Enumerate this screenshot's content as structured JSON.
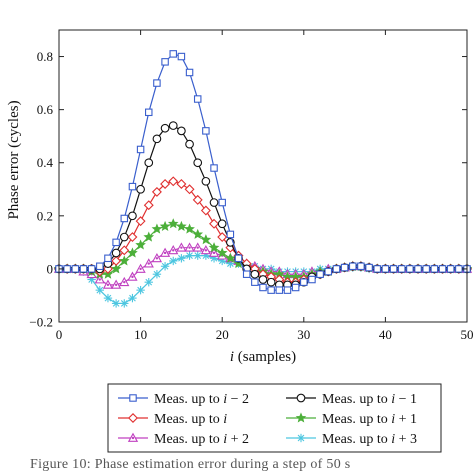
{
  "chart_data": {
    "type": "line",
    "xlabel_var": "i",
    "xlabel_rest": " (samples)",
    "ylabel": "Phase error (cycles)",
    "xlim": [
      0,
      50
    ],
    "ylim": [
      -0.2,
      0.9
    ],
    "xticks": [
      0,
      10,
      20,
      30,
      40,
      50
    ],
    "yticks": [
      -0.2,
      0,
      0.2,
      0.4,
      0.6,
      0.8
    ],
    "grid": false,
    "legend_position": "below",
    "series": [
      {
        "name": "Meas. up to i − 2",
        "name_prefix": "Meas. up to ",
        "name_var": "i",
        "name_suffix": " − 2",
        "color": "#3a5fcd",
        "marker": "square",
        "values": [
          0,
          0,
          0,
          0,
          0,
          0.01,
          0.04,
          0.1,
          0.19,
          0.31,
          0.45,
          0.59,
          0.7,
          0.78,
          0.81,
          0.8,
          0.74,
          0.64,
          0.52,
          0.38,
          0.25,
          0.13,
          0.04,
          -0.02,
          -0.05,
          -0.07,
          -0.08,
          -0.08,
          -0.08,
          -0.07,
          -0.05,
          -0.04,
          -0.02,
          -0.01,
          0,
          0.005,
          0.01,
          0.01,
          0.005,
          0,
          0,
          0,
          0,
          0,
          0,
          0,
          0,
          0,
          0,
          0,
          0
        ]
      },
      {
        "name": "Meas. up to i − 1",
        "name_prefix": "Meas. up to ",
        "name_var": "i",
        "name_suffix": " − 1",
        "color": "#111111",
        "marker": "circle",
        "values": [
          0,
          0,
          0,
          0,
          0,
          0,
          0.02,
          0.06,
          0.12,
          0.2,
          0.3,
          0.4,
          0.49,
          0.53,
          0.54,
          0.52,
          0.47,
          0.4,
          0.33,
          0.25,
          0.17,
          0.1,
          0.04,
          0,
          -0.02,
          -0.04,
          -0.05,
          -0.06,
          -0.06,
          -0.06,
          -0.05,
          -0.03,
          -0.02,
          -0.01,
          0,
          0.005,
          0.01,
          0.01,
          0.005,
          0,
          0,
          0,
          0,
          0,
          0,
          0,
          0,
          0,
          0,
          0,
          0
        ]
      },
      {
        "name": "Meas. up to i",
        "name_prefix": "Meas. up to ",
        "name_var": "i",
        "name_suffix": "",
        "color": "#e03030",
        "marker": "diamond",
        "values": [
          0,
          0,
          0,
          0,
          0,
          -0.01,
          0,
          0.03,
          0.07,
          0.12,
          0.18,
          0.24,
          0.29,
          0.32,
          0.33,
          0.32,
          0.3,
          0.26,
          0.22,
          0.17,
          0.12,
          0.08,
          0.05,
          0.02,
          0,
          -0.02,
          -0.03,
          -0.04,
          -0.05,
          -0.05,
          -0.04,
          -0.03,
          -0.02,
          -0.01,
          0,
          0.005,
          0.01,
          0.01,
          0.005,
          0,
          0,
          0,
          0,
          0,
          0,
          0,
          0,
          0,
          0,
          0,
          0
        ]
      },
      {
        "name": "Meas. up to i + 1",
        "name_prefix": "Meas. up to ",
        "name_var": "i",
        "name_suffix": " + 1",
        "color": "#4caf3a",
        "marker": "star",
        "values": [
          0,
          0,
          0,
          0,
          -0.01,
          -0.02,
          -0.02,
          0,
          0.03,
          0.06,
          0.09,
          0.12,
          0.15,
          0.16,
          0.17,
          0.16,
          0.15,
          0.13,
          0.11,
          0.08,
          0.06,
          0.04,
          0.02,
          0.01,
          0,
          -0.01,
          -0.02,
          -0.02,
          -0.03,
          -0.03,
          -0.03,
          -0.02,
          -0.01,
          -0.01,
          0,
          0.005,
          0.01,
          0.01,
          0.005,
          0,
          0,
          0,
          0,
          0,
          0,
          0,
          0,
          0,
          0,
          0,
          0
        ]
      },
      {
        "name": "Meas. up to i + 2",
        "name_prefix": "Meas. up to ",
        "name_var": "i",
        "name_suffix": " + 2",
        "color": "#c040c0",
        "marker": "triangle",
        "values": [
          0,
          0,
          0,
          -0.01,
          -0.02,
          -0.04,
          -0.06,
          -0.06,
          -0.05,
          -0.03,
          0,
          0.02,
          0.04,
          0.06,
          0.07,
          0.08,
          0.08,
          0.08,
          0.07,
          0.06,
          0.05,
          0.04,
          0.03,
          0.02,
          0.01,
          0,
          -0.01,
          -0.01,
          -0.02,
          -0.02,
          -0.02,
          -0.01,
          -0.01,
          0,
          0,
          0.005,
          0.01,
          0.01,
          0.005,
          0,
          0,
          0,
          0,
          0,
          0,
          0,
          0,
          0,
          0,
          0,
          0
        ]
      },
      {
        "name": "Meas. up to i + 3",
        "name_prefix": "Meas. up to ",
        "name_var": "i",
        "name_suffix": " + 3",
        "color": "#4dc6e0",
        "marker": "asterisk",
        "values": [
          0,
          0,
          0,
          -0.01,
          -0.04,
          -0.08,
          -0.11,
          -0.13,
          -0.13,
          -0.11,
          -0.08,
          -0.05,
          -0.02,
          0.01,
          0.03,
          0.04,
          0.05,
          0.05,
          0.05,
          0.04,
          0.03,
          0.02,
          0.02,
          0.01,
          0.01,
          0,
          0,
          -0.01,
          -0.01,
          -0.01,
          -0.01,
          -0.01,
          0,
          0,
          0,
          0.005,
          0.005,
          0.005,
          0,
          0,
          0,
          0,
          0,
          0,
          0,
          0,
          0,
          0,
          0,
          0,
          0
        ]
      }
    ]
  },
  "caption": "Figure 10: Phase estimation error during a step of 50 s"
}
